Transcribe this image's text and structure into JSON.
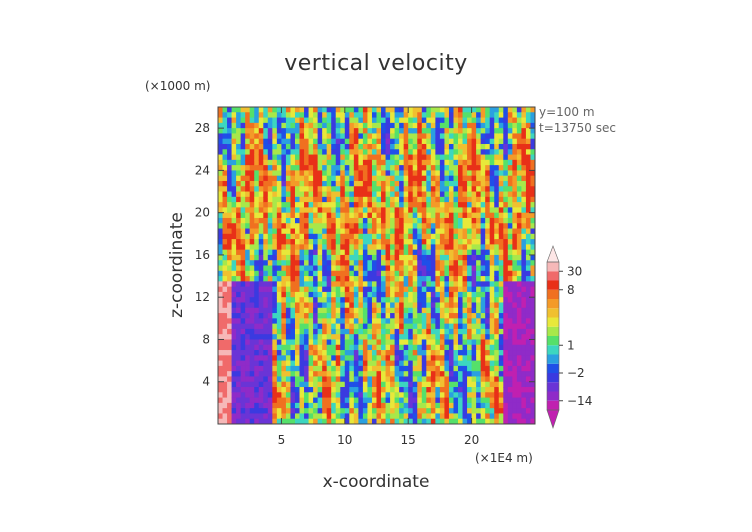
{
  "chart_data": {
    "type": "heatmap",
    "title": "vertical velocity",
    "xlabel": "x-coordinate",
    "ylabel": "z-coordinate",
    "x_unit": "(×1E4 m)",
    "y_unit": "(×1000 m)",
    "annotations": [
      "y=100 m",
      "t=13750 sec"
    ],
    "xlim": [
      0,
      25
    ],
    "ylim": [
      0,
      30
    ],
    "x_ticks": [
      5,
      10,
      15,
      20
    ],
    "y_ticks": [
      4,
      8,
      12,
      16,
      20,
      24,
      28
    ],
    "colorbar": {
      "tick_labels": [
        "30",
        "8",
        "1",
        "−2",
        "−14"
      ],
      "tick_values": [
        30,
        8,
        1,
        -2,
        -14
      ],
      "levels": [
        -26,
        -14,
        -8,
        -5,
        -2,
        -1,
        0,
        1,
        2,
        3,
        4,
        5,
        6,
        8,
        15,
        30,
        40
      ],
      "colors": [
        "#c020b0",
        "#8f2bc8",
        "#6a34d6",
        "#3a3ae0",
        "#1f4fe8",
        "#2aa0e0",
        "#3cd6c0",
        "#55e06a",
        "#a8e84a",
        "#e8e83a",
        "#f0c030",
        "#f49a28",
        "#f07020",
        "#e83018",
        "#f06a6a",
        "#f6b8b8",
        "#fde6e6"
      ],
      "extend": "both"
    }
  }
}
